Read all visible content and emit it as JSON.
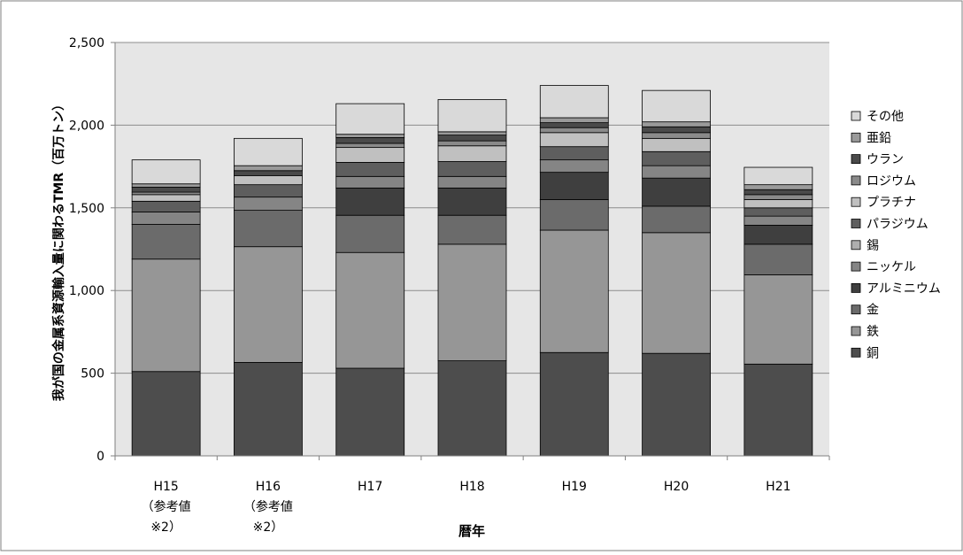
{
  "chart_data": {
    "type": "bar",
    "stacked": true,
    "categories": [
      [
        "H15",
        "（参考値",
        "※2）"
      ],
      [
        "H16",
        "（参考値",
        "※2）"
      ],
      [
        "H17"
      ],
      [
        "H18"
      ],
      [
        "H19"
      ],
      [
        "H20"
      ],
      [
        "H21"
      ]
    ],
    "xlabel": "暦年",
    "ylabel": "我が国の金属系資源輸入量に関わるTMR（百万トン）",
    "ylim": [
      0,
      2500
    ],
    "yticks": [
      0,
      500,
      1000,
      1500,
      2000,
      2500
    ],
    "ytick_labels": [
      "0",
      "500",
      "1,000",
      "1,500",
      "2,000",
      "2,500"
    ],
    "grid": true,
    "legend_position": "right",
    "series": [
      {
        "name": "銅",
        "color": "#4d4d4d",
        "values": [
          510,
          565,
          530,
          575,
          625,
          620,
          555
        ]
      },
      {
        "name": "鉄",
        "color": "#969696",
        "values": [
          680,
          700,
          700,
          705,
          740,
          730,
          540
        ]
      },
      {
        "name": "金",
        "color": "#6b6b6b",
        "values": [
          210,
          220,
          225,
          175,
          185,
          160,
          185
        ]
      },
      {
        "name": "アルミニウム",
        "color": "#3f3f3f",
        "values": [
          0,
          0,
          165,
          165,
          165,
          170,
          115
        ]
      },
      {
        "name": "ニッケル",
        "color": "#858585",
        "values": [
          75,
          80,
          70,
          70,
          75,
          75,
          55
        ]
      },
      {
        "name": "錫",
        "color": "#aeaeae",
        "values": [
          0,
          0,
          0,
          0,
          0,
          0,
          0
        ]
      },
      {
        "name": "パラジウム",
        "color": "#5e5e5e",
        "values": [
          65,
          75,
          85,
          90,
          80,
          85,
          50
        ]
      },
      {
        "name": "プラチナ",
        "color": "#c0c0c0",
        "values": [
          40,
          55,
          90,
          95,
          85,
          80,
          50
        ]
      },
      {
        "name": "ロジウム",
        "color": "#8a8a8a",
        "values": [
          15,
          0,
          25,
          30,
          30,
          35,
          30
        ]
      },
      {
        "name": "ウラン",
        "color": "#4a4a4a",
        "values": [
          30,
          30,
          35,
          35,
          30,
          35,
          30
        ]
      },
      {
        "name": "亜鉛",
        "color": "#9a9a9a",
        "values": [
          20,
          30,
          20,
          20,
          30,
          30,
          30
        ]
      },
      {
        "name": "その他",
        "color": "#d9d9d9",
        "values": [
          145,
          165,
          185,
          195,
          195,
          190,
          105
        ]
      }
    ]
  }
}
